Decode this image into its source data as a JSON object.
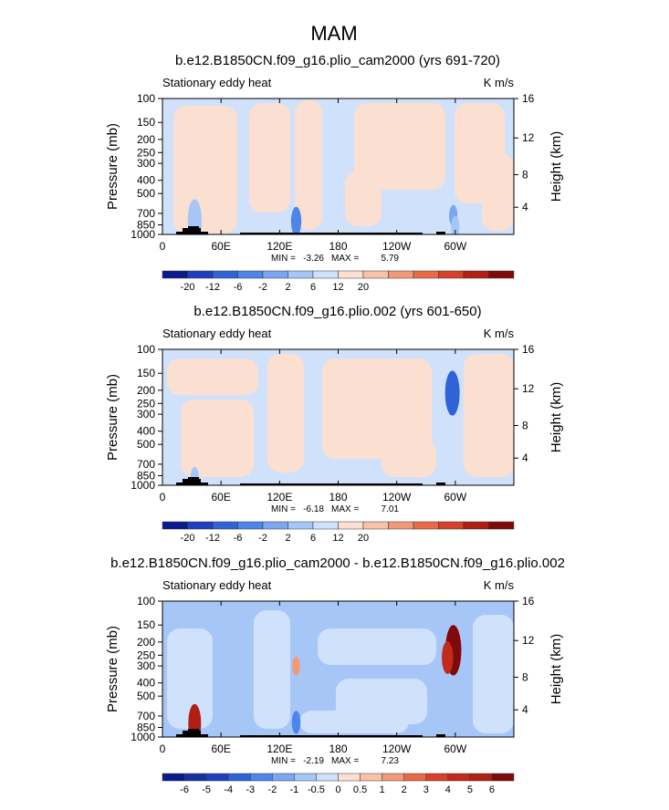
{
  "suptitle": "MAM",
  "chart_data": [
    {
      "type": "heatmap",
      "title": "b.e12.B1850CN.f09_g16.plio_cam2000 (yrs 691-720)",
      "left_label": "Stationary eddy heat",
      "right_label": "K m/s",
      "ylabel": "Pressure (mb)",
      "ylabel_right": "Height (km)",
      "x_ticks": [
        "0",
        "60E",
        "120E",
        "180",
        "120W",
        "60W"
      ],
      "y_ticks": [
        "100",
        "150",
        "200",
        "250",
        "300",
        "400",
        "500",
        "700",
        "850",
        "1000"
      ],
      "y2_ticks": [
        "16",
        "12",
        "8",
        "4"
      ],
      "min_label": "MIN =",
      "min_value": "-3.26",
      "max_label": "MAX =",
      "max_value": "5.79",
      "colorbar_labels": [
        "-20",
        "-12",
        "-6",
        "-2",
        "2",
        "6",
        "12",
        "20"
      ],
      "colorbar_colors": [
        "#0a1b8e",
        "#1f3fbf",
        "#2f64d9",
        "#4f84ea",
        "#7aa6f2",
        "#a6c6f8",
        "#cfe1fb",
        "#fbe0d2",
        "#f7c2a8",
        "#f29a78",
        "#ea6a48",
        "#d8402a",
        "#b21e14",
        "#800a0a"
      ],
      "anomalies": [
        {
          "lon": 33,
          "p": 790,
          "value": 5.8
        },
        {
          "lon": 35,
          "p": 880,
          "value": 3
        },
        {
          "lon": 137,
          "p": 800,
          "value": -3.3
        },
        {
          "lon": 298,
          "p": 730,
          "value": -2
        },
        {
          "lon": 300,
          "p": 880,
          "value": 2
        }
      ]
    },
    {
      "type": "heatmap",
      "title": "b.e12.B1850CN.f09_g16.plio.002 (yrs 601-650)",
      "left_label": "Stationary eddy heat",
      "right_label": "K m/s",
      "ylabel": "Pressure (mb)",
      "ylabel_right": "Height (km)",
      "x_ticks": [
        "0",
        "60E",
        "120E",
        "180",
        "120W",
        "60W"
      ],
      "y_ticks": [
        "100",
        "150",
        "200",
        "250",
        "300",
        "400",
        "500",
        "700",
        "850",
        "1000"
      ],
      "y2_ticks": [
        "16",
        "12",
        "8",
        "4"
      ],
      "min_label": "MIN =",
      "min_value": "-6.18",
      "max_label": "MAX =",
      "max_value": "7.01",
      "colorbar_labels": [
        "-20",
        "-12",
        "-6",
        "-2",
        "2",
        "6",
        "12",
        "20"
      ],
      "colorbar_colors": [
        "#0a1b8e",
        "#1f3fbf",
        "#2f64d9",
        "#4f84ea",
        "#7aa6f2",
        "#a6c6f8",
        "#cfe1fb",
        "#fbe0d2",
        "#f7c2a8",
        "#f29a78",
        "#ea6a48",
        "#d8402a",
        "#b21e14",
        "#800a0a"
      ],
      "anomalies": [
        {
          "lon": 297,
          "p": 210,
          "value": -6.2
        },
        {
          "lon": 33,
          "p": 880,
          "value": 2
        },
        {
          "lon": 300,
          "p": 880,
          "value": 7.0
        }
      ]
    },
    {
      "type": "heatmap",
      "title": "b.e12.B1850CN.f09_g16.plio_cam2000 - b.e12.B1850CN.f09_g16.plio.002",
      "left_label": "Stationary eddy heat",
      "right_label": "K m/s",
      "ylabel": "Pressure (mb)",
      "ylabel_right": "Height (km)",
      "x_ticks": [
        "0",
        "60E",
        "120E",
        "180",
        "120W",
        "60W"
      ],
      "y_ticks": [
        "100",
        "150",
        "200",
        "250",
        "300",
        "400",
        "500",
        "700",
        "850",
        "1000"
      ],
      "y2_ticks": [
        "16",
        "12",
        "8",
        "4"
      ],
      "min_label": "MIN =",
      "min_value": "-2.19",
      "max_label": "MAX =",
      "max_value": "7.23",
      "colorbar_labels": [
        "-6",
        "-5",
        "-4",
        "-3",
        "-2",
        "-1",
        "-0.5",
        "0",
        "0.5",
        "1",
        "2",
        "3",
        "4",
        "5",
        "6"
      ],
      "colorbar_colors": [
        "#0a1b8e",
        "#17309f",
        "#1f3fbf",
        "#2f64d9",
        "#4f84ea",
        "#7aa6f2",
        "#a6c6f8",
        "#cfe1fb",
        "#fbe0d2",
        "#f7c2a8",
        "#f29a78",
        "#ea6a48",
        "#d8402a",
        "#c22a1c",
        "#b21e14",
        "#800a0a"
      ],
      "anomalies": [
        {
          "lon": 298,
          "p": 230,
          "value": 7.2
        },
        {
          "lon": 292,
          "p": 260,
          "value": 4
        },
        {
          "lon": 33,
          "p": 790,
          "value": 5
        },
        {
          "lon": 137,
          "p": 780,
          "value": -2.2
        },
        {
          "lon": 137,
          "p": 300,
          "value": 1.5
        }
      ]
    }
  ]
}
